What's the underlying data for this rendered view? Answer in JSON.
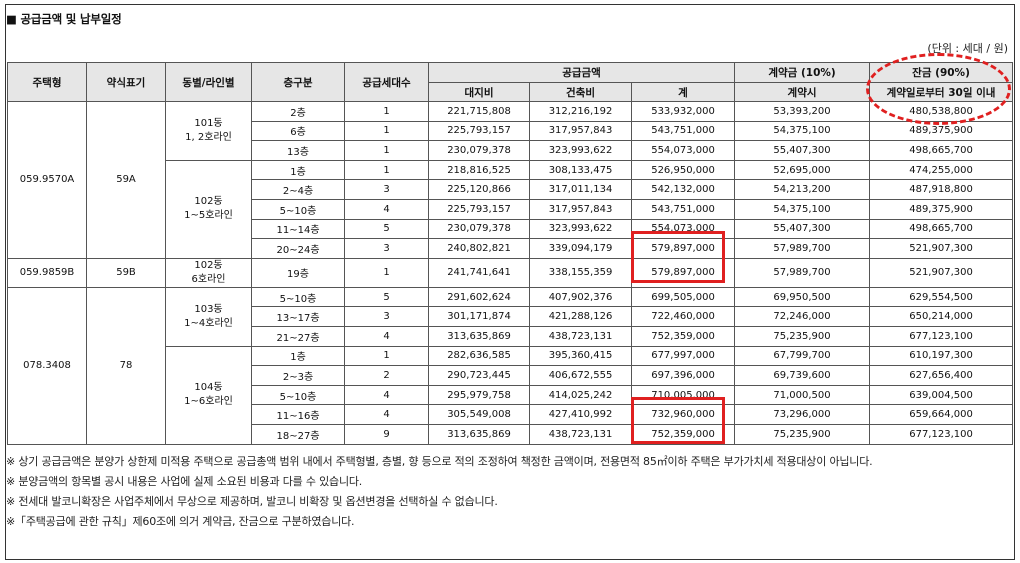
{
  "section_title": "■ 공급금액 및 납부일정",
  "unit_note": "(단위 : 세대 / 원)",
  "headers": {
    "type": "주택형",
    "abbr": "약식표기",
    "building_line": "동별/라인별",
    "floor": "층구분",
    "units": "공급세대수",
    "supply_amount": "공급금액",
    "land": "대지비",
    "building": "건축비",
    "total": "계",
    "deposit": "계약금 (10%)",
    "deposit_timing": "계약시",
    "balance": "잔금 (90%)",
    "balance_timing": "계약일로부터 30일 이내"
  },
  "groups": [
    {
      "type": "059.9570A",
      "abbr": "59A",
      "buildings": [
        {
          "name": "101동\n1, 2호라인",
          "rows": [
            {
              "floor": "2층",
              "units": "1",
              "land": "221,715,808",
              "building": "312,216,192",
              "total": "533,932,000",
              "deposit": "53,393,200",
              "balance": "480,538,800"
            },
            {
              "floor": "6층",
              "units": "1",
              "land": "225,793,157",
              "building": "317,957,843",
              "total": "543,751,000",
              "deposit": "54,375,100",
              "balance": "489,375,900"
            },
            {
              "floor": "13층",
              "units": "1",
              "land": "230,079,378",
              "building": "323,993,622",
              "total": "554,073,000",
              "deposit": "55,407,300",
              "balance": "498,665,700"
            }
          ]
        },
        {
          "name": "102동\n1~5호라인",
          "rows": [
            {
              "floor": "1층",
              "units": "1",
              "land": "218,816,525",
              "building": "308,133,475",
              "total": "526,950,000",
              "deposit": "52,695,000",
              "balance": "474,255,000"
            },
            {
              "floor": "2~4층",
              "units": "3",
              "land": "225,120,866",
              "building": "317,011,134",
              "total": "542,132,000",
              "deposit": "54,213,200",
              "balance": "487,918,800"
            },
            {
              "floor": "5~10층",
              "units": "4",
              "land": "225,793,157",
              "building": "317,957,843",
              "total": "543,751,000",
              "deposit": "54,375,100",
              "balance": "489,375,900"
            },
            {
              "floor": "11~14층",
              "units": "5",
              "land": "230,079,378",
              "building": "323,993,622",
              "total": "554,073,000",
              "deposit": "55,407,300",
              "balance": "498,665,700"
            },
            {
              "floor": "20~24층",
              "units": "3",
              "land": "240,802,821",
              "building": "339,094,179",
              "total": "579,897,000",
              "deposit": "57,989,700",
              "balance": "521,907,300"
            }
          ]
        }
      ]
    },
    {
      "type": "059.9859B",
      "abbr": "59B",
      "buildings": [
        {
          "name": "102동\n6호라인",
          "rows": [
            {
              "floor": "19층",
              "units": "1",
              "land": "241,741,641",
              "building": "338,155,359",
              "total": "579,897,000",
              "deposit": "57,989,700",
              "balance": "521,907,300"
            }
          ]
        }
      ]
    },
    {
      "type": "078.3408",
      "abbr": "78",
      "buildings": [
        {
          "name": "103동\n1~4호라인",
          "rows": [
            {
              "floor": "5~10층",
              "units": "5",
              "land": "291,602,624",
              "building": "407,902,376",
              "total": "699,505,000",
              "deposit": "69,950,500",
              "balance": "629,554,500"
            },
            {
              "floor": "13~17층",
              "units": "3",
              "land": "301,171,874",
              "building": "421,288,126",
              "total": "722,460,000",
              "deposit": "72,246,000",
              "balance": "650,214,000"
            },
            {
              "floor": "21~27층",
              "units": "4",
              "land": "313,635,869",
              "building": "438,723,131",
              "total": "752,359,000",
              "deposit": "75,235,900",
              "balance": "677,123,100"
            }
          ]
        },
        {
          "name": "104동\n1~6호라인",
          "rows": [
            {
              "floor": "1층",
              "units": "1",
              "land": "282,636,585",
              "building": "395,360,415",
              "total": "677,997,000",
              "deposit": "67,799,700",
              "balance": "610,197,300"
            },
            {
              "floor": "2~3층",
              "units": "2",
              "land": "290,723,445",
              "building": "406,672,555",
              "total": "697,396,000",
              "deposit": "69,739,600",
              "balance": "627,656,400"
            },
            {
              "floor": "5~10층",
              "units": "4",
              "land": "295,979,758",
              "building": "414,025,242",
              "total": "710,005,000",
              "deposit": "71,000,500",
              "balance": "639,004,500"
            },
            {
              "floor": "11~16층",
              "units": "4",
              "land": "305,549,008",
              "building": "427,410,992",
              "total": "732,960,000",
              "deposit": "73,296,000",
              "balance": "659,664,000"
            },
            {
              "floor": "18~27층",
              "units": "9",
              "land": "313,635,869",
              "building": "438,723,131",
              "total": "752,359,000",
              "deposit": "75,235,900",
              "balance": "677,123,100"
            }
          ]
        }
      ]
    }
  ],
  "notes": [
    "※ 상기 공급금액은 분양가 상한제 미적용 주택으로 공급총액 범위 내에서 주택형별, 층별, 향 등으로 적의 조정하여 책정한 금액이며, 전용면적 85㎡이하 주택은 부가가치세 적용대상이 아닙니다.",
    "※ 분양금액의 항목별 공시 내용은 사업에 실제 소요된 비용과 다를 수 있습니다.",
    "※ 전세대 발코니확장은 사업주체에서 무상으로 제공하며, 발코니 비확장 및 옵션변경을 선택하실 수 없습니다.",
    "※「주택공급에 관한 규칙」제60조에 의거 계약금, 잔금으로 구분하였습니다."
  ],
  "highlight_color": "#e02020"
}
